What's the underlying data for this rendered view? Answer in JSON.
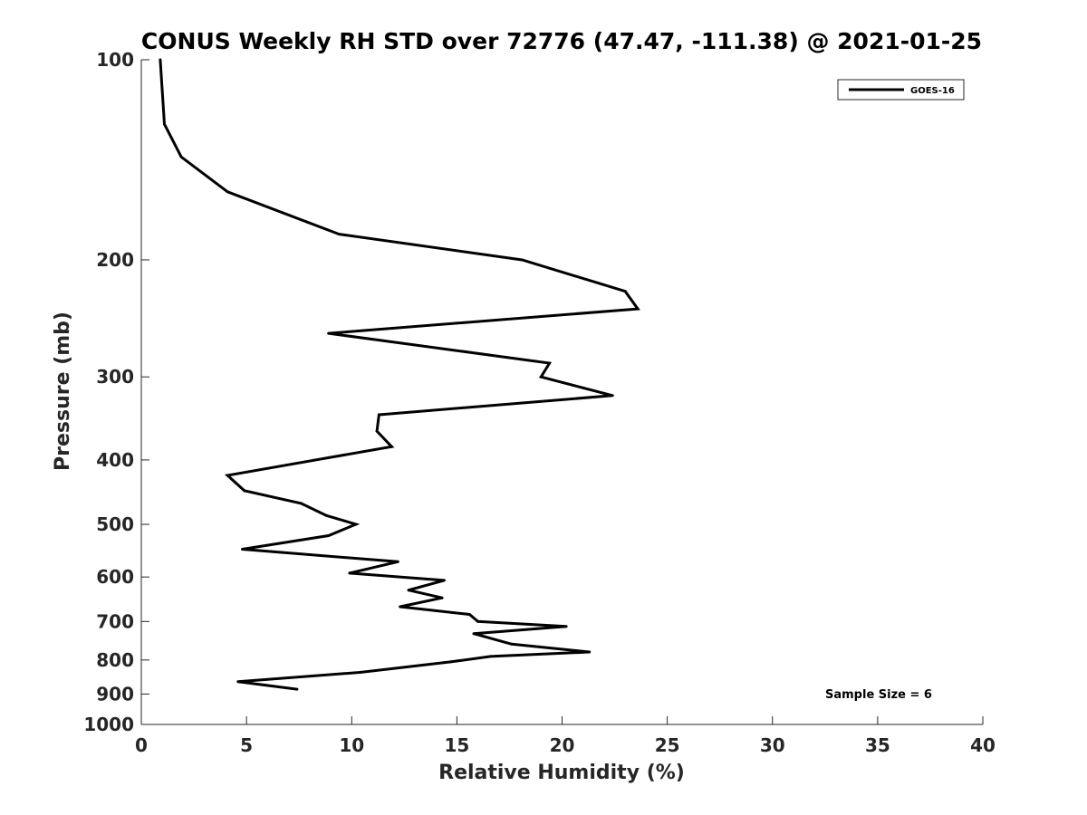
{
  "chart_data": {
    "type": "line",
    "title": "CONUS Weekly RH STD over 72776 (47.47, -111.38) @ 2021-01-25",
    "xlabel": "Relative Humidity (%)",
    "ylabel": "Pressure (mb)",
    "xlim": [
      0,
      40
    ],
    "ylim": [
      1000,
      100
    ],
    "yscale": "log",
    "grid": false,
    "legend_position": "top-right",
    "x_ticks": [
      0,
      5,
      10,
      15,
      20,
      25,
      30,
      35,
      40
    ],
    "x_tick_labels": [
      "0",
      "5",
      "10",
      "15",
      "20",
      "25",
      "30",
      "35",
      "40"
    ],
    "y_ticks": [
      100,
      200,
      300,
      400,
      500,
      600,
      700,
      800,
      900,
      1000
    ],
    "y_tick_labels": [
      "100",
      "200",
      "300",
      "400",
      "500",
      "600",
      "700",
      "800",
      "900",
      "1000"
    ],
    "series": [
      {
        "name": "GOES-16",
        "color": "#000000",
        "points": [
          {
            "x": 0.9,
            "y": 100
          },
          {
            "x": 1.1,
            "y": 125
          },
          {
            "x": 1.9,
            "y": 140
          },
          {
            "x": 4.1,
            "y": 158
          },
          {
            "x": 9.4,
            "y": 183
          },
          {
            "x": 18.1,
            "y": 200
          },
          {
            "x": 23.0,
            "y": 223
          },
          {
            "x": 23.6,
            "y": 237
          },
          {
            "x": 8.9,
            "y": 258
          },
          {
            "x": 19.4,
            "y": 286
          },
          {
            "x": 19.0,
            "y": 300
          },
          {
            "x": 22.4,
            "y": 320
          },
          {
            "x": 11.3,
            "y": 342
          },
          {
            "x": 11.2,
            "y": 362
          },
          {
            "x": 11.9,
            "y": 382
          },
          {
            "x": 4.1,
            "y": 422
          },
          {
            "x": 4.9,
            "y": 445
          },
          {
            "x": 7.6,
            "y": 465
          },
          {
            "x": 8.8,
            "y": 485
          },
          {
            "x": 10.2,
            "y": 500
          },
          {
            "x": 8.9,
            "y": 520
          },
          {
            "x": 4.8,
            "y": 545
          },
          {
            "x": 12.2,
            "y": 569
          },
          {
            "x": 9.9,
            "y": 592
          },
          {
            "x": 14.4,
            "y": 607
          },
          {
            "x": 12.7,
            "y": 628
          },
          {
            "x": 14.3,
            "y": 645
          },
          {
            "x": 12.3,
            "y": 665
          },
          {
            "x": 15.6,
            "y": 683
          },
          {
            "x": 16.0,
            "y": 700
          },
          {
            "x": 20.2,
            "y": 712
          },
          {
            "x": 15.8,
            "y": 730
          },
          {
            "x": 17.6,
            "y": 757
          },
          {
            "x": 21.3,
            "y": 778
          },
          {
            "x": 16.6,
            "y": 790
          },
          {
            "x": 14.7,
            "y": 805
          },
          {
            "x": 10.4,
            "y": 835
          },
          {
            "x": 4.6,
            "y": 862
          },
          {
            "x": 7.4,
            "y": 885
          }
        ]
      }
    ],
    "annotations": [
      "Sample Size = 6"
    ]
  }
}
